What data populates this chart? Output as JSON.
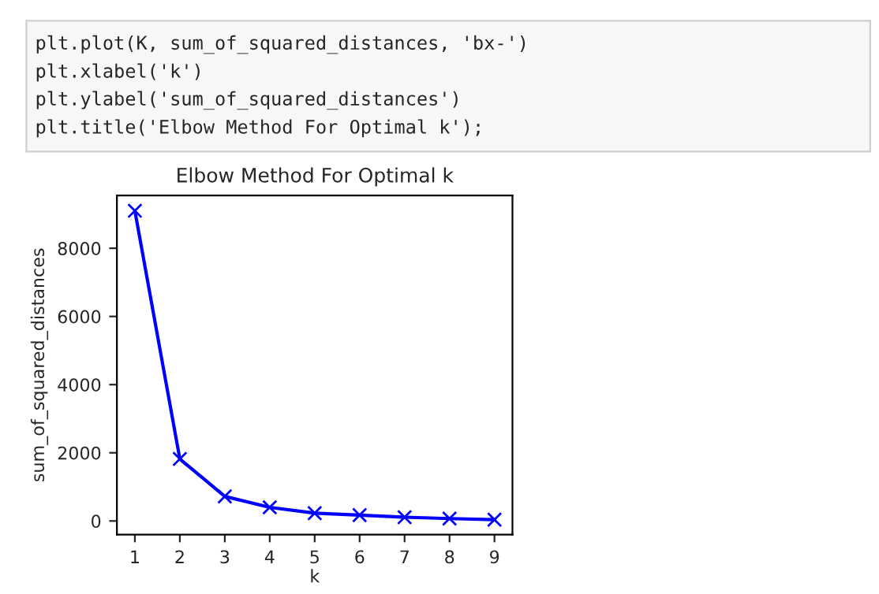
{
  "chart_data": {
    "type": "line",
    "title": "Elbow Method For Optimal k",
    "xlabel": "k",
    "ylabel": "sum_of_squared_distances",
    "x": [
      1,
      2,
      3,
      4,
      5,
      6,
      7,
      8,
      9
    ],
    "series": [
      {
        "color": "#0000ff",
        "values": [
          9100,
          1820,
          720,
          400,
          230,
          170,
          110,
          70,
          40
        ]
      }
    ],
    "marker": "cross",
    "line_style": "solid",
    "xlim": [
      0.6,
      9.4
    ],
    "xticks": [
      1,
      2,
      3,
      4,
      5,
      6,
      7,
      8,
      9
    ],
    "ylim": [
      -400,
      9550
    ],
    "yticks": [
      0,
      2000,
      4000,
      6000,
      8000
    ],
    "grid": false,
    "legend": false,
    "annotations": [
      "plt.plot(K, sum_of_squared_distances, 'bx-')",
      "plt.xlabel('k')",
      "plt.ylabel('sum_of_squared_distances')",
      "plt.title('Elbow Method For Optimal k');"
    ]
  }
}
